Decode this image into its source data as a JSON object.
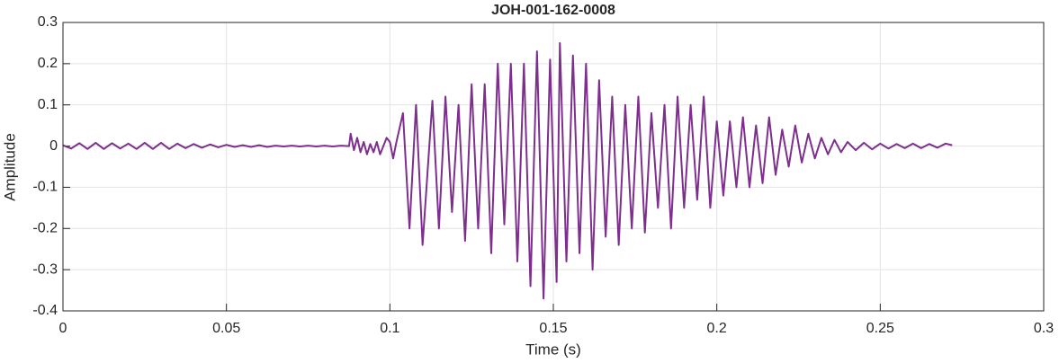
{
  "chart_data": {
    "type": "line",
    "title": "JOH-001-162-0008",
    "xlabel": "Time (s)",
    "ylabel": "Amplitude",
    "xlim": [
      0,
      0.3
    ],
    "xticks": [
      0,
      0.05,
      0.1,
      0.15,
      0.2,
      0.25,
      0.3
    ],
    "ylim": [
      -0.4,
      0.3
    ],
    "yticks": [
      -0.4,
      -0.3,
      -0.2,
      -0.1,
      0,
      0.1,
      0.2,
      0.3
    ],
    "grid": true,
    "series": [
      {
        "color": "#7e2f8e",
        "x": [
          0,
          0.0025,
          0.005,
          0.0075,
          0.01,
          0.0125,
          0.015,
          0.0175,
          0.02,
          0.0225,
          0.025,
          0.0275,
          0.03,
          0.0325,
          0.035,
          0.0375,
          0.04,
          0.0425,
          0.045,
          0.0475,
          0.05,
          0.0525,
          0.055,
          0.0575,
          0.06,
          0.0625,
          0.065,
          0.0675,
          0.07,
          0.0725,
          0.075,
          0.0775,
          0.08,
          0.0825,
          0.085,
          0.0875,
          0.088,
          0.089,
          0.09,
          0.091,
          0.092,
          0.093,
          0.094,
          0.095,
          0.096,
          0.097,
          0.098,
          0.099,
          0.1,
          0.101,
          0.102,
          0.104,
          0.106,
          0.108,
          0.11,
          0.113,
          0.115,
          0.117,
          0.119,
          0.121,
          0.123,
          0.125,
          0.127,
          0.129,
          0.131,
          0.133,
          0.135,
          0.137,
          0.139,
          0.141,
          0.143,
          0.145,
          0.147,
          0.149,
          0.151,
          0.152,
          0.154,
          0.156,
          0.158,
          0.16,
          0.162,
          0.164,
          0.166,
          0.168,
          0.17,
          0.172,
          0.174,
          0.176,
          0.178,
          0.18,
          0.182,
          0.184,
          0.186,
          0.188,
          0.19,
          0.192,
          0.194,
          0.196,
          0.198,
          0.2,
          0.202,
          0.204,
          0.206,
          0.208,
          0.21,
          0.212,
          0.214,
          0.216,
          0.218,
          0.22,
          0.222,
          0.224,
          0.226,
          0.228,
          0.23,
          0.232,
          0.234,
          0.236,
          0.238,
          0.24,
          0.2425,
          0.245,
          0.2475,
          0.25,
          0.2525,
          0.255,
          0.2575,
          0.26,
          0.2625,
          0.265,
          0.2675,
          0.27,
          0.272
        ],
        "values": [
          0.002,
          -0.006,
          0.007,
          -0.007,
          0.008,
          -0.007,
          0.007,
          -0.006,
          0.006,
          -0.007,
          0.008,
          -0.007,
          0.008,
          -0.007,
          0.006,
          -0.005,
          0.005,
          -0.004,
          0.004,
          -0.003,
          0.003,
          -0.002,
          0.002,
          -0.002,
          0.002,
          -0.002,
          0.001,
          -0.001,
          0.001,
          -0.001,
          0.001,
          -0.001,
          0.001,
          -0.001,
          0.001,
          0,
          0.03,
          -0.01,
          0.02,
          -0.015,
          0.01,
          -0.02,
          0.005,
          -0.015,
          0.01,
          -0.02,
          0,
          0.02,
          0.01,
          -0.03,
          0.01,
          0.08,
          -0.2,
          0.1,
          -0.24,
          0.11,
          -0.2,
          0.12,
          -0.16,
          0.1,
          -0.23,
          0.15,
          -0.2,
          0.15,
          -0.26,
          0.2,
          -0.19,
          0.2,
          -0.28,
          0.2,
          -0.34,
          0.23,
          -0.37,
          0.21,
          -0.33,
          0.25,
          -0.28,
          0.22,
          -0.26,
          0.2,
          -0.3,
          0.16,
          -0.22,
          0.12,
          -0.24,
          0.1,
          -0.2,
          0.12,
          -0.21,
          0.08,
          -0.15,
          0.1,
          -0.2,
          0.12,
          -0.15,
          0.1,
          -0.13,
          0.12,
          -0.15,
          0.06,
          -0.12,
          0.06,
          -0.1,
          0.07,
          -0.1,
          0.05,
          -0.09,
          0.07,
          -0.07,
          0.04,
          -0.05,
          0.05,
          -0.04,
          0.03,
          -0.03,
          0.02,
          -0.02,
          0.015,
          -0.015,
          0.01,
          -0.01,
          0.008,
          -0.008,
          0.006,
          -0.006,
          0.005,
          -0.005,
          0.006,
          -0.005,
          0.005,
          -0.004,
          0.006,
          0.002
        ]
      }
    ]
  }
}
